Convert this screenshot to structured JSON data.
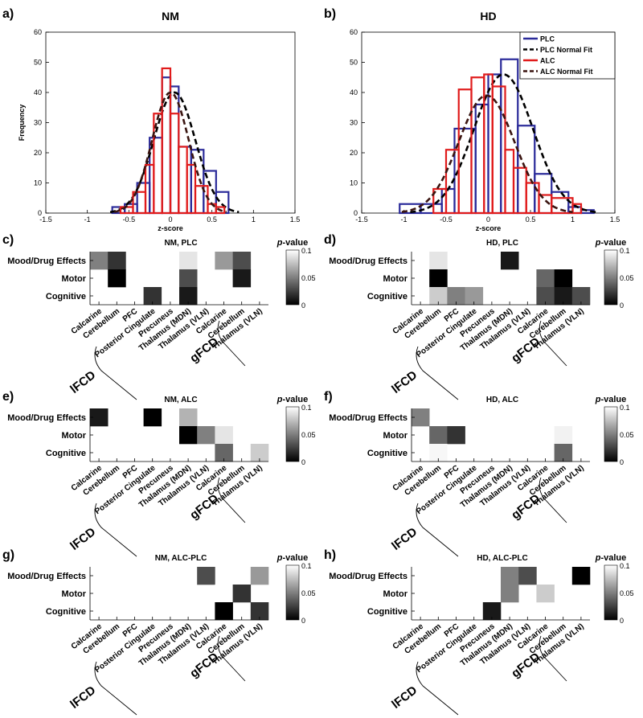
{
  "panel_letters": [
    "a)",
    "b)",
    "c)",
    "d)",
    "e)",
    "f)",
    "g)",
    "h)"
  ],
  "colors": {
    "plc": "#2b2b9a",
    "alc": "#e01b1b",
    "plc_fit": "#000000",
    "alc_fit": "#3a1410"
  },
  "colorbar": {
    "title_p": "p",
    "title_rest": "-value",
    "ticks": [
      "0.1",
      "0.05",
      "0"
    ]
  },
  "heatmap_rows": [
    "Mood/Drug Effects",
    "Motor",
    "Cognitive"
  ],
  "heatmap_cols": [
    "Calcarine",
    "Cerebellum",
    "PFC",
    "Posterior Cingulate",
    "Precuneus",
    "Thalamus (MDN)",
    "Thalamus (VLN)",
    "Calcarine",
    "Cerebellum",
    "Thalamus (VLN)"
  ],
  "group_labels": [
    "lFCD",
    "gFCD"
  ],
  "chart_data": [
    {
      "type": "bar",
      "panel": "a)",
      "title": "NM",
      "xlabel": "z-score",
      "ylabel": "Frequency",
      "xlim": [
        -1.5,
        1.5
      ],
      "ylim": [
        0,
        60
      ],
      "xticks": [
        "-1.5",
        "-1",
        "-0.5",
        "0",
        "0.5",
        "1",
        "1.5"
      ],
      "yticks": [
        "0",
        "10",
        "20",
        "30",
        "40",
        "50",
        "60"
      ],
      "series": [
        {
          "kind": "hist",
          "color": "plc",
          "bins": [
            [
              -0.7,
              -0.55,
              2
            ],
            [
              -0.55,
              -0.4,
              3
            ],
            [
              -0.4,
              -0.25,
              10
            ],
            [
              -0.25,
              -0.1,
              25
            ],
            [
              -0.1,
              0.0,
              45
            ],
            [
              0.0,
              0.1,
              42
            ],
            [
              0.1,
              0.25,
              22
            ],
            [
              0.25,
              0.4,
              21
            ],
            [
              0.4,
              0.55,
              14
            ],
            [
              0.55,
              0.7,
              7
            ]
          ]
        },
        {
          "kind": "fit",
          "color": "plc_fit",
          "mu": 0.05,
          "sigma": 0.25,
          "peak": 40
        },
        {
          "kind": "hist",
          "color": "alc",
          "bins": [
            [
              -0.6,
              -0.45,
              2
            ],
            [
              -0.45,
              -0.3,
              7
            ],
            [
              -0.3,
              -0.2,
              16
            ],
            [
              -0.2,
              -0.1,
              33
            ],
            [
              -0.1,
              0.0,
              48
            ],
            [
              0.0,
              0.1,
              33
            ],
            [
              0.1,
              0.2,
              22
            ],
            [
              0.2,
              0.3,
              16
            ],
            [
              0.3,
              0.45,
              9
            ],
            [
              0.45,
              0.55,
              3
            ],
            [
              0.55,
              0.65,
              2
            ]
          ]
        },
        {
          "kind": "fit",
          "color": "alc_fit",
          "mu": 0.0,
          "sigma": 0.22,
          "peak": 40
        }
      ]
    },
    {
      "type": "bar",
      "panel": "b)",
      "title": "HD",
      "xlabel": "z-score",
      "ylabel": "",
      "xlim": [
        -1.5,
        1.5
      ],
      "ylim": [
        0,
        60
      ],
      "xticks": [
        "-1.5",
        "-1",
        "-0.5",
        "0",
        "0.5",
        "1",
        "1.5"
      ],
      "yticks": [
        "0",
        "10",
        "20",
        "30",
        "40",
        "50",
        "60"
      ],
      "legend": [
        "PLC",
        "PLC Normal Fit",
        "ALC",
        "ALC Normal Fit"
      ],
      "series": [
        {
          "kind": "hist",
          "color": "plc",
          "bins": [
            [
              -1.05,
              -0.8,
              3
            ],
            [
              -0.8,
              -0.55,
              3
            ],
            [
              -0.55,
              -0.4,
              8
            ],
            [
              -0.4,
              -0.15,
              28
            ],
            [
              -0.15,
              0.0,
              36
            ],
            [
              0.0,
              0.15,
              46
            ],
            [
              0.15,
              0.35,
              51
            ],
            [
              0.35,
              0.55,
              29
            ],
            [
              0.55,
              0.75,
              13
            ],
            [
              0.75,
              0.95,
              7
            ],
            [
              0.95,
              1.1,
              2
            ],
            [
              1.1,
              1.25,
              1
            ]
          ]
        },
        {
          "kind": "fit",
          "color": "plc_fit",
          "mu": 0.18,
          "sigma": 0.35,
          "peak": 46
        },
        {
          "kind": "hist",
          "color": "alc",
          "bins": [
            [
              -0.65,
              -0.5,
              8
            ],
            [
              -0.5,
              -0.35,
              21
            ],
            [
              -0.35,
              -0.2,
              41
            ],
            [
              -0.2,
              -0.05,
              45
            ],
            [
              -0.05,
              0.05,
              46
            ],
            [
              0.05,
              0.2,
              42
            ],
            [
              0.2,
              0.3,
              21
            ],
            [
              0.3,
              0.45,
              15
            ],
            [
              0.45,
              0.6,
              10
            ],
            [
              0.6,
              0.75,
              6
            ],
            [
              0.75,
              1.0,
              5
            ],
            [
              1.0,
              1.1,
              3
            ]
          ]
        },
        {
          "kind": "fit",
          "color": "alc_fit",
          "mu": -0.02,
          "sigma": 0.33,
          "peak": 39
        }
      ]
    },
    {
      "type": "heatmap",
      "panel": "c)",
      "title": "NM, PLC",
      "cells": [
        [
          0.05,
          0.02,
          null,
          null,
          null,
          0.09,
          null,
          0.06,
          0.03,
          null
        ],
        [
          null,
          0.0,
          null,
          null,
          null,
          0.03,
          null,
          null,
          0.01,
          null
        ],
        [
          null,
          null,
          null,
          0.02,
          null,
          0.01,
          null,
          null,
          null,
          null
        ]
      ]
    },
    {
      "type": "heatmap",
      "panel": "d)",
      "title": "HD, PLC",
      "cells": [
        [
          null,
          0.09,
          null,
          null,
          null,
          0.01,
          null,
          null,
          null,
          null
        ],
        [
          null,
          0.0,
          null,
          null,
          null,
          null,
          null,
          0.04,
          0.0,
          null
        ],
        [
          null,
          0.08,
          0.05,
          0.06,
          null,
          null,
          null,
          0.03,
          0.01,
          0.03
        ]
      ]
    },
    {
      "type": "heatmap",
      "panel": "e)",
      "title": "NM, ALC",
      "cells": [
        [
          0.01,
          null,
          null,
          0.0,
          null,
          0.07,
          null,
          null,
          null,
          null
        ],
        [
          null,
          null,
          null,
          null,
          null,
          0.0,
          0.05,
          0.09,
          null,
          null
        ],
        [
          null,
          null,
          null,
          null,
          null,
          null,
          null,
          0.04,
          null,
          0.08
        ]
      ]
    },
    {
      "type": "heatmap",
      "panel": "f)",
      "title": "HD, ALC",
      "cells": [
        [
          0.05,
          null,
          null,
          null,
          null,
          null,
          null,
          null,
          null,
          null
        ],
        [
          null,
          0.04,
          0.02,
          null,
          null,
          null,
          null,
          null,
          0.095,
          null
        ],
        [
          null,
          0.097,
          null,
          null,
          null,
          null,
          null,
          null,
          0.04,
          null
        ]
      ]
    },
    {
      "type": "heatmap",
      "panel": "g)",
      "title": "NM, ALC-PLC",
      "cells": [
        [
          null,
          null,
          null,
          null,
          null,
          null,
          0.03,
          null,
          null,
          0.06
        ],
        [
          null,
          null,
          null,
          null,
          null,
          null,
          null,
          0.1,
          0.02,
          null
        ],
        [
          null,
          null,
          null,
          null,
          null,
          null,
          null,
          0.0,
          null,
          0.02
        ]
      ]
    },
    {
      "type": "heatmap",
      "panel": "h)",
      "title": "HD, ALC-PLC",
      "cells": [
        [
          null,
          null,
          null,
          null,
          null,
          0.05,
          0.03,
          null,
          null,
          0.0
        ],
        [
          null,
          null,
          null,
          null,
          null,
          0.05,
          null,
          0.08,
          null,
          null
        ],
        [
          null,
          null,
          null,
          null,
          0.01,
          null,
          null,
          null,
          null,
          null
        ]
      ]
    }
  ]
}
